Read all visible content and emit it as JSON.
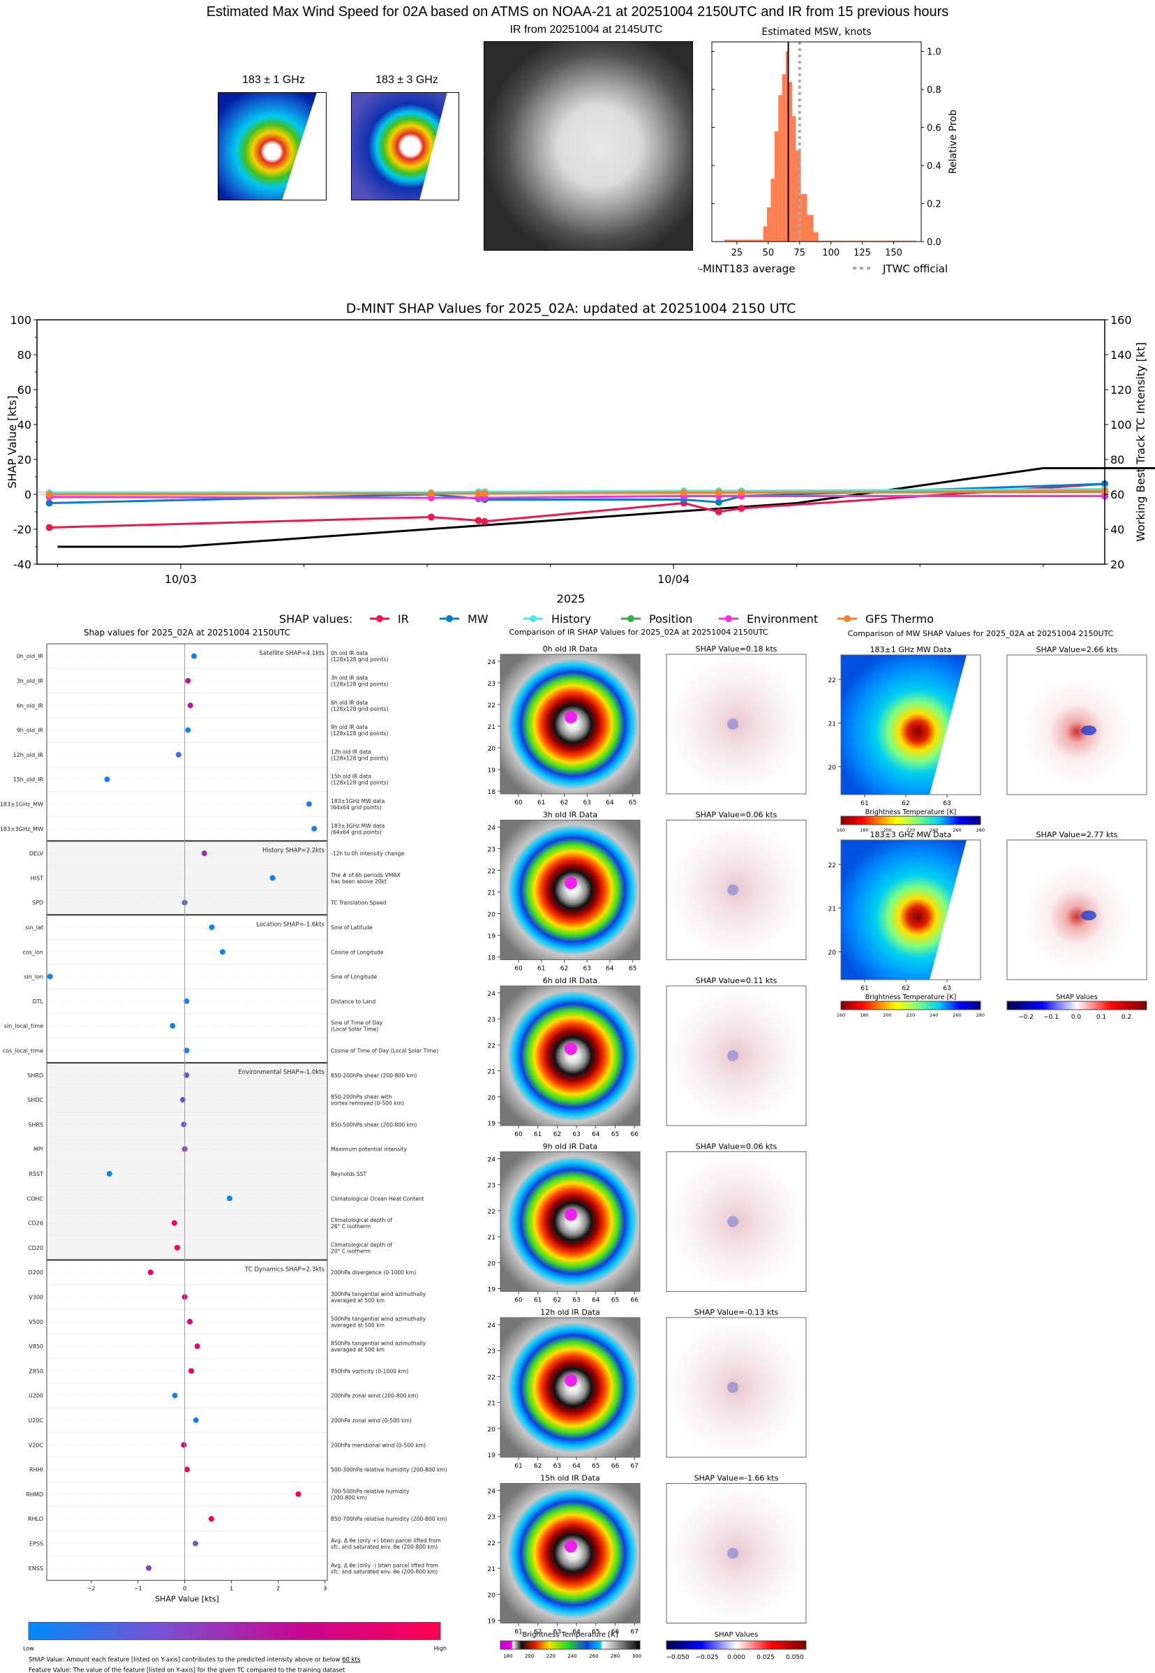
{
  "header": {
    "title": "Estimated Max Wind Speed for 02A based on ATMS on NOAA-21 at 20251004 2150UTC and IR from 15 previous hours",
    "mw1_title": "183 ± 1 GHz",
    "mw3_title": "183 ± 3 GHz",
    "ir_title": "IR from 20251004 at 2145UTC",
    "hist_title": "Estimated MSW, knots"
  },
  "chart_data": [
    {
      "id": "msw_histogram",
      "type": "bar",
      "title": "Estimated MSW, knots",
      "xlabel": "",
      "ylabel": "Relative Prob",
      "xlim": [
        5,
        172
      ],
      "ylim": [
        0,
        1.05
      ],
      "xticks": [
        25,
        50,
        75,
        100,
        125,
        150
      ],
      "yticks": [
        0.0,
        0.2,
        0.4,
        0.6,
        0.8,
        1.0
      ],
      "bins": [
        {
          "x0": 15,
          "x1": 46,
          "value": 0.01
        },
        {
          "x0": 46,
          "x1": 49,
          "value": 0.08
        },
        {
          "x0": 49,
          "x1": 52,
          "value": 0.18
        },
        {
          "x0": 52,
          "x1": 55,
          "value": 0.33
        },
        {
          "x0": 55,
          "x1": 58,
          "value": 0.58
        },
        {
          "x0": 58,
          "x1": 61,
          "value": 0.77
        },
        {
          "x0": 61,
          "x1": 64,
          "value": 0.88
        },
        {
          "x0": 64,
          "x1": 66,
          "value": 1.0
        },
        {
          "x0": 66,
          "x1": 69,
          "value": 0.84
        },
        {
          "x0": 69,
          "x1": 72,
          "value": 0.66
        },
        {
          "x0": 72,
          "x1": 76,
          "value": 0.48
        },
        {
          "x0": 76,
          "x1": 81,
          "value": 0.25
        },
        {
          "x0": 81,
          "x1": 86,
          "value": 0.14
        },
        {
          "x0": 86,
          "x1": 90,
          "value": 0.05
        },
        {
          "x0": 90,
          "x1": 168,
          "value": 0.005
        }
      ],
      "dmint_average": 66,
      "jtwc_official": 75,
      "legend": [
        "D-MINT183 average",
        "JTWC official"
      ],
      "colors": {
        "bars": "#ff7f50",
        "average": "#000000",
        "jtwc": "#aaaaaa"
      }
    },
    {
      "id": "shap_timeseries",
      "type": "line",
      "title": "D-MINT SHAP Values for 2025_02A: updated at 20251004 2150 UTC",
      "xlabel": "2025",
      "ylabel": "SHAP Value [kts]",
      "ylabel_right": "Working Best Track TC Intensity [kt]",
      "xlim_hours": [
        -7,
        45
      ],
      "ylim": [
        -40,
        100
      ],
      "ylim_right": [
        20,
        160
      ],
      "yticks": [
        -40,
        -20,
        0,
        20,
        40,
        60,
        80,
        100
      ],
      "yticks_right": [
        20,
        40,
        60,
        80,
        100,
        120,
        140,
        160
      ],
      "xticks": [
        {
          "h": 0,
          "label": "10/03"
        },
        {
          "h": 24,
          "label": "10/04"
        }
      ],
      "x_minor_hours": [
        -6,
        0,
        6,
        12,
        18,
        24,
        30,
        36,
        42
      ],
      "legend_label": "SHAP values:",
      "series": [
        {
          "name": "IR",
          "color": "#e8194f",
          "x": [
            -6.4,
            12.2,
            14.5,
            14.8,
            24.5,
            26.2,
            27.3,
            45.0,
            47.5
          ],
          "values": [
            -19,
            -13,
            -15,
            -15.5,
            -5,
            -10,
            -8,
            6,
            -1
          ]
        },
        {
          "name": "MW",
          "color": "#0a7dc9",
          "x": [
            -6.4,
            12.2,
            14.5,
            14.8,
            24.5,
            26.2,
            27.3,
            45.0,
            47.5
          ],
          "values": [
            -5,
            0,
            -2.5,
            -3,
            -3,
            -4.5,
            -1,
            6,
            6
          ]
        },
        {
          "name": "History",
          "color": "#4ee8e8",
          "x": [
            -6.4,
            12.2,
            14.5,
            14.8,
            24.5,
            26.2,
            27.3,
            45.0,
            47.5
          ],
          "values": [
            1,
            1,
            1.5,
            1.5,
            2,
            2,
            2,
            3,
            3
          ]
        },
        {
          "name": "Position",
          "color": "#3aaa48",
          "x": [
            -6.4,
            12.2,
            14.5,
            14.8,
            24.5,
            26.2,
            27.3,
            45.0,
            47.5
          ],
          "values": [
            0,
            0.5,
            0.5,
            0.5,
            1,
            1,
            1,
            1.5,
            1.5
          ]
        },
        {
          "name": "Environment",
          "color": "#ee33dd",
          "x": [
            -6.4,
            12.2,
            14.5,
            14.8,
            24.5,
            26.2,
            27.3,
            45.0,
            47.5
          ],
          "values": [
            -1.5,
            -2,
            -2,
            -2,
            -1,
            -1,
            -1,
            -1,
            -1
          ]
        },
        {
          "name": "GFS Thermo",
          "color": "#f5822a",
          "x": [
            -6.4,
            12.2,
            14.5,
            14.8,
            24.5,
            26.2,
            27.3,
            45.0,
            47.5
          ],
          "values": [
            0,
            0.5,
            0.5,
            0.5,
            1,
            1,
            1,
            2,
            2
          ]
        }
      ],
      "tc_intensity": {
        "name": "TC Intensity",
        "color": "#000000",
        "x": [
          -6,
          0,
          6,
          12,
          18,
          24,
          30,
          36,
          42,
          48
        ],
        "values": [
          30,
          30,
          35,
          40,
          45,
          50,
          55,
          65,
          75,
          75
        ]
      }
    },
    {
      "id": "feature_shap",
      "type": "scatter",
      "title": "Shap values for 2025_02A at 20251004 2150UTC",
      "xlabel": "SHAP Value [kts]",
      "xlim": [
        -2.95,
        3.05
      ],
      "xticks": [
        -2,
        -1,
        0,
        1,
        2,
        3
      ],
      "colorbar": {
        "low": "Low",
        "high": "High",
        "colors": [
          "#008afb",
          "#7c4ed0",
          "#c8068f",
          "#ff0052"
        ]
      },
      "groups": [
        {
          "name": "Satellite SHAP=4.1kts",
          "shaded": false,
          "features": [
            {
              "name": "0h_old_IR",
              "desc": "0h old IR data\n(128x128 grid points)",
              "shap": 0.2,
              "feat": 0.05
            },
            {
              "name": "3h_old_IR",
              "desc": "3h old IR data\n(128x128 grid points)",
              "shap": 0.07,
              "feat": 0.6
            },
            {
              "name": "6h_old_IR",
              "desc": "6h old IR data\n(128x128 grid points)",
              "shap": 0.12,
              "feat": 0.6
            },
            {
              "name": "9h_old_IR",
              "desc": "9h old IR data\n(128x128 grid points)",
              "shap": 0.07,
              "feat": 0.05
            },
            {
              "name": "12h_old_IR",
              "desc": "12h old IR data\n(128x128 grid points)",
              "shap": -0.13,
              "feat": 0.2
            },
            {
              "name": "15h_old_IR",
              "desc": "15h old IR data\n(128x128 grid points)",
              "shap": -1.66,
              "feat": 0.05
            },
            {
              "name": "183±1GHz_MW",
              "desc": "183±1GHz MW data\n(64x64 grid points)",
              "shap": 2.66,
              "feat": 0.1
            },
            {
              "name": "183±3GHz_MW",
              "desc": "183±3GHz MW data\n(64x64 grid points)",
              "shap": 2.77,
              "feat": 0.05
            }
          ]
        },
        {
          "name": "History SHAP=2.2kts",
          "shaded": true,
          "features": [
            {
              "name": "DELV",
              "desc": "-12h to 0h Intensity change",
              "shap": 0.42,
              "feat": 0.5
            },
            {
              "name": "HIST",
              "desc": "The # of 6h periods VMAX\nhas been above 20kt",
              "shap": 1.88,
              "feat": 0.05
            },
            {
              "name": "SPD",
              "desc": "TC Translation Speed",
              "shap": 0.0,
              "feat": 0.25
            }
          ]
        },
        {
          "name": "Location SHAP=-1.6kts",
          "shaded": false,
          "features": [
            {
              "name": "sin_lat",
              "desc": "Sine of Latitude",
              "shap": 0.58,
              "feat": 0.05
            },
            {
              "name": "cos_lon",
              "desc": "Cosine of Longitude",
              "shap": 0.81,
              "feat": 0.05
            },
            {
              "name": "sin_lon",
              "desc": "Sine of Longitude",
              "shap": -2.88,
              "feat": 0.05
            },
            {
              "name": "DTL",
              "desc": "Distance to Land",
              "shap": 0.04,
              "feat": 0.05
            },
            {
              "name": "sin_local_time",
              "desc": "Sine of Time of Day\n(Local Solar Time)",
              "shap": -0.26,
              "feat": 0.05
            },
            {
              "name": "cos_local_time",
              "desc": "Cosine of Time of Day (Local Solar Time)",
              "shap": 0.04,
              "feat": 0.05
            }
          ]
        },
        {
          "name": "Environmental SHAP=-1.0kts",
          "shaded": true,
          "features": [
            {
              "name": "SHRD",
              "desc": "850-200hPa shear (200-800 km)",
              "shap": 0.04,
              "feat": 0.3
            },
            {
              "name": "SHDC",
              "desc": "850-200hPa shear with\nvortex removed (0-500 km)",
              "shap": -0.04,
              "feat": 0.3
            },
            {
              "name": "SHRS",
              "desc": "850-500hPa shear (200-800 km)",
              "shap": -0.02,
              "feat": 0.3
            },
            {
              "name": "MPI",
              "desc": "Maximum potential intensity",
              "shap": 0.0,
              "feat": 0.4
            },
            {
              "name": "RSST",
              "desc": "Reynolds SST",
              "shap": -1.61,
              "feat": 0.05
            },
            {
              "name": "COHC",
              "desc": "Climatological Ocean Heat Content",
              "shap": 0.96,
              "feat": 0.05
            },
            {
              "name": "CD26",
              "desc": "Climatological depth of\n26° C isotherm",
              "shap": -0.22,
              "feat": 0.93
            },
            {
              "name": "CD20",
              "desc": "Climatological depth of\n20° C isotherm",
              "shap": -0.16,
              "feat": 0.97
            }
          ]
        },
        {
          "name": "TC Dynamics SHAP=2.3kts",
          "shaded": false,
          "features": [
            {
              "name": "D200",
              "desc": "200hPa divergence (0-1000 km)",
              "shap": -0.73,
              "feat": 0.93
            },
            {
              "name": "V300",
              "desc": "300hPa tangential wind azimuthally\naveraged at 500 km",
              "shap": 0.0,
              "feat": 0.8
            },
            {
              "name": "V500",
              "desc": "500hPa tangential wind azimuthally\naveraged at 500 km",
              "shap": 0.11,
              "feat": 0.8
            },
            {
              "name": "V850",
              "desc": "850hPa tangential wind azimuthally\naveraged at 500 km",
              "shap": 0.27,
              "feat": 0.8
            },
            {
              "name": "Z850",
              "desc": "850hPa vorticity (0-1000 km)",
              "shap": 0.14,
              "feat": 0.93
            },
            {
              "name": "U200",
              "desc": "200hPa zonal wind (200-800 km)",
              "shap": -0.21,
              "feat": 0.05
            },
            {
              "name": "U20C",
              "desc": "200hPa zonal wind (0-500 km)",
              "shap": 0.24,
              "feat": 0.05
            },
            {
              "name": "V20C",
              "desc": "200hPa meridional wind (0-500 km)",
              "shap": -0.02,
              "feat": 0.8
            },
            {
              "name": "RHHI",
              "desc": "500-300hPa relative humidity (200-800 km)",
              "shap": 0.05,
              "feat": 0.97
            },
            {
              "name": "RHMD",
              "desc": "700-500hPa relative humidity\n(200-800 km)",
              "shap": 2.43,
              "feat": 0.97
            },
            {
              "name": "RHLO",
              "desc": "850-700hPa relative humidity (200-800 km)",
              "shap": 0.57,
              "feat": 0.9
            },
            {
              "name": "EPSS",
              "desc": "Avg. Δ θe (only +) btwn parcel lifted from\nsfc. and saturated env. θe (200-800 km)",
              "shap": 0.23,
              "feat": 0.3
            },
            {
              "name": "ENSS",
              "desc": "Avg. Δ θe (only -) btwn parcel lifted from\nsfc. and saturated env. θe (200-800 km)",
              "shap": -0.77,
              "feat": 0.4
            }
          ]
        }
      ]
    }
  ],
  "footnotes": {
    "line1_prefix": "SHAP Value: Amount each feature [listed on Y-axis] contributes to the predicted intensity above or below ",
    "line1_value": "60 kts",
    "line2": "Feature Value: The value of the feature [listed on Y-axis] for the given TC compared to the training dataset"
  },
  "ir_comparison": {
    "title": "Comparison of IR SHAP Values for 2025_02A at 20251004 2150UTC",
    "panels": [
      {
        "data_title": "0h old IR Data",
        "shap_title": "SHAP Value=0.18 kts",
        "xticks": [
          "60",
          "61",
          "62",
          "63",
          "64",
          "65"
        ],
        "yticks": [
          "24",
          "23",
          "22",
          "21",
          "20",
          "19",
          "18"
        ]
      },
      {
        "data_title": "3h old IR Data",
        "shap_title": "SHAP Value=0.06 kts",
        "xticks": [
          "60",
          "61",
          "62",
          "63",
          "64",
          "65"
        ],
        "yticks": [
          "24",
          "23",
          "22",
          "21",
          "20",
          "19",
          "18"
        ]
      },
      {
        "data_title": "6h old IR Data",
        "shap_title": "SHAP Value=0.11 kts",
        "xticks": [
          "60",
          "61",
          "62",
          "63",
          "64",
          "65",
          "66"
        ],
        "yticks": [
          "24",
          "23",
          "22",
          "21",
          "20",
          "19"
        ]
      },
      {
        "data_title": "9h old IR Data",
        "shap_title": "SHAP Value=0.06 kts",
        "xticks": [
          "60",
          "61",
          "62",
          "63",
          "64",
          "65",
          "66"
        ],
        "yticks": [
          "24",
          "23",
          "22",
          "21",
          "20",
          "19"
        ]
      },
      {
        "data_title": "12h old IR Data",
        "shap_title": "SHAP Value=-0.13 kts",
        "xticks": [
          "61",
          "62",
          "63",
          "64",
          "65",
          "66",
          "67"
        ],
        "yticks": [
          "24",
          "23",
          "22",
          "21",
          "20",
          "19"
        ]
      },
      {
        "data_title": "15h old IR Data",
        "shap_title": "SHAP Value=-1.66 kts",
        "xticks": [
          "61",
          "62",
          "63",
          "64",
          "65",
          "66",
          "67"
        ],
        "yticks": [
          "24",
          "23",
          "22",
          "21",
          "20",
          "19"
        ]
      }
    ],
    "colorbar_title": "Brightness Temperature [K]",
    "colorbar_ticks": [
      "180",
      "200",
      "220",
      "240",
      "260",
      "280",
      "300"
    ],
    "shap_colorbar_title": "SHAP Values",
    "shap_colorbar_ticks": [
      "−0.050",
      "−0.025",
      "0.000",
      "0.025",
      "0.050"
    ]
  },
  "mw_comparison": {
    "title": "Comparison of MW SHAP Values for 2025_02A at 20251004 2150UTC",
    "panels": [
      {
        "data_title": "183±1 GHz MW Data",
        "shap_title": "SHAP Value=2.66 kts"
      },
      {
        "data_title": "183±3 GHz MW Data",
        "shap_title": "SHAP Value=2.77 kts"
      }
    ],
    "xticks": [
      "61",
      "62",
      "63"
    ],
    "yticks": [
      "22",
      "21",
      "20"
    ],
    "colorbar_title": "Brightness Temperature [K]",
    "colorbar_ticks": [
      "160",
      "180",
      "200",
      "220",
      "240",
      "260",
      "280"
    ],
    "shap_colorbar_title": "SHAP Values",
    "shap_colorbar_ticks": [
      "−0.2",
      "−0.1",
      "0.0",
      "0.1",
      "0.2"
    ]
  }
}
